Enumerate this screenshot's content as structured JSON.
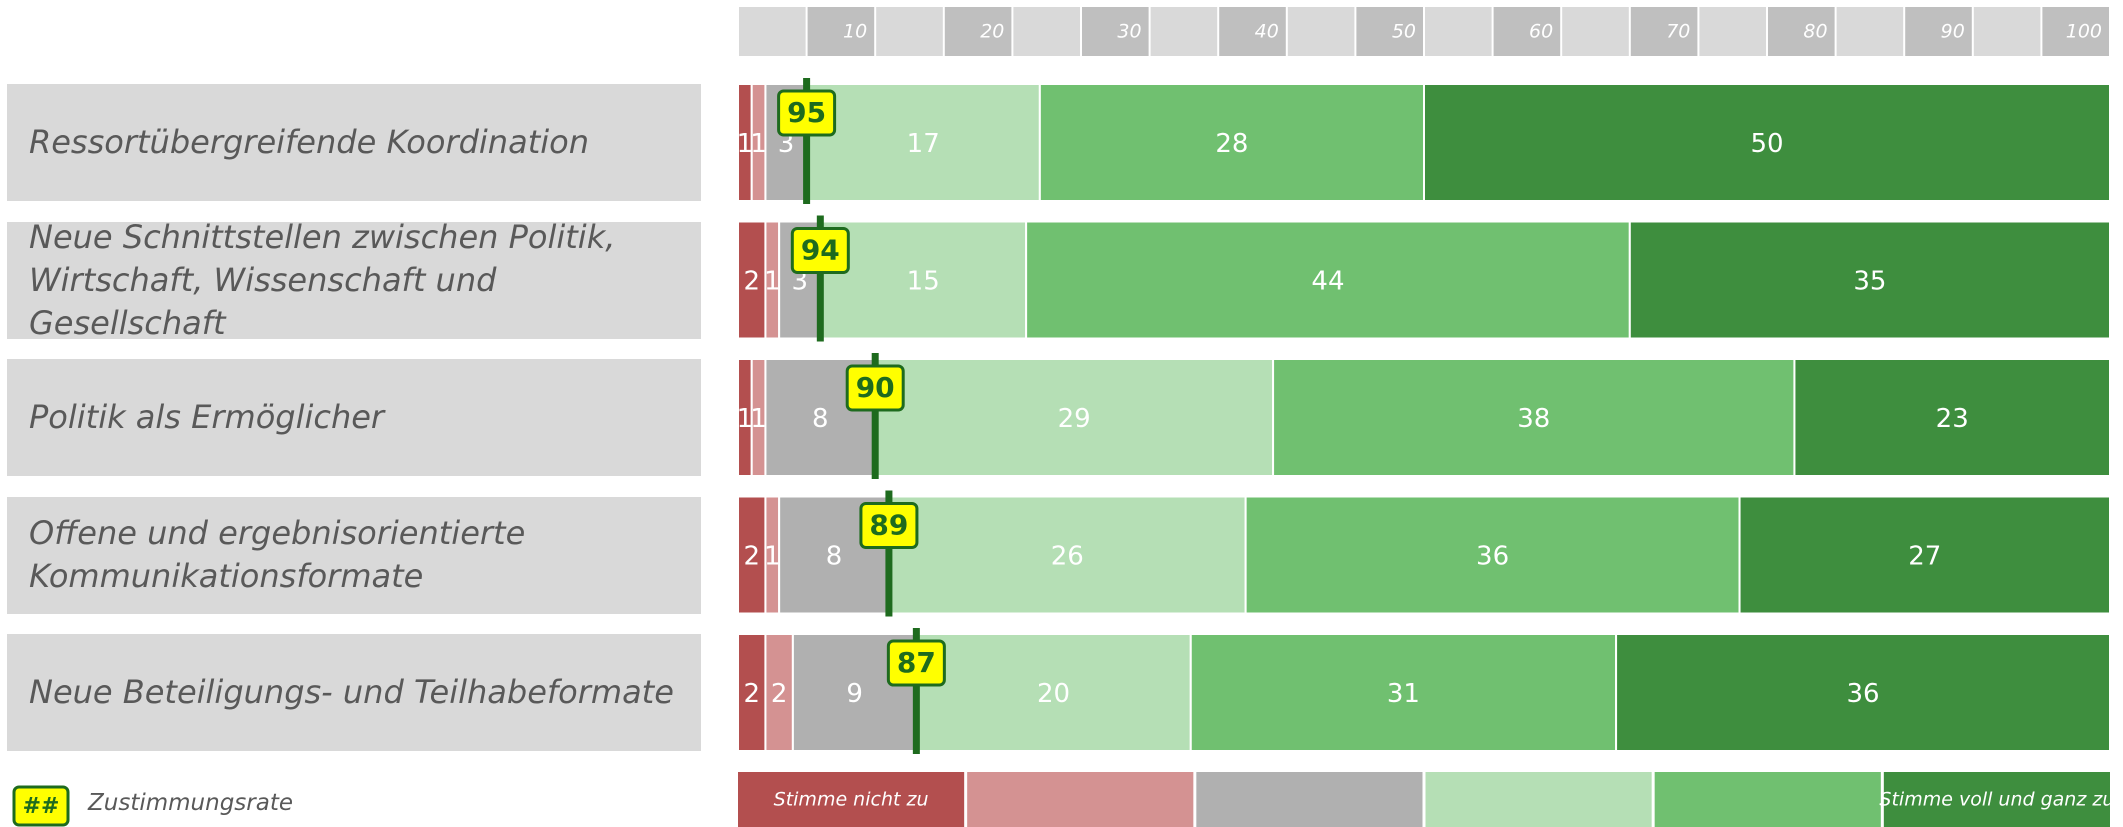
{
  "chart_data": {
    "type": "stacked-bar-horizontal",
    "categories": [
      "Ressortübergreifende Koordination",
      "Neue Schnittstellen zwischen Politik,\nWirtschaft, Wissenschaft und Gesellschaft",
      "Politik als Ermöglicher",
      "Offene und ergebnisorientierte\nKommunikationsformate",
      "Neue Beteiligungs- und Teilhabeformate"
    ],
    "series": [
      {
        "name": "Stimme nicht zu",
        "color": "#b34f4f",
        "values": [
          1,
          2,
          1,
          2,
          2
        ]
      },
      {
        "color": "#d49292",
        "values": [
          1,
          1,
          1,
          1,
          2
        ]
      },
      {
        "color": "#b0b0b0",
        "values": [
          3,
          3,
          8,
          8,
          9
        ]
      },
      {
        "color": "#b5dfb5",
        "values": [
          17,
          15,
          29,
          26,
          20
        ]
      },
      {
        "color": "#70c070",
        "values": [
          28,
          44,
          38,
          36,
          31
        ]
      },
      {
        "name": "Stimme voll und ganz zu",
        "color": "#3e8e3e",
        "values": [
          50,
          35,
          23,
          27,
          36
        ]
      }
    ],
    "approval": {
      "label": "Zustimmungsrate",
      "symbol": "##",
      "color": "#ffff00",
      "line_color": "#1e6b1e",
      "values": [
        95,
        94,
        90,
        89,
        87
      ]
    },
    "xlim": [
      0,
      100
    ],
    "xticks": [
      10,
      20,
      30,
      40,
      50,
      60,
      70,
      80,
      90,
      100
    ]
  }
}
